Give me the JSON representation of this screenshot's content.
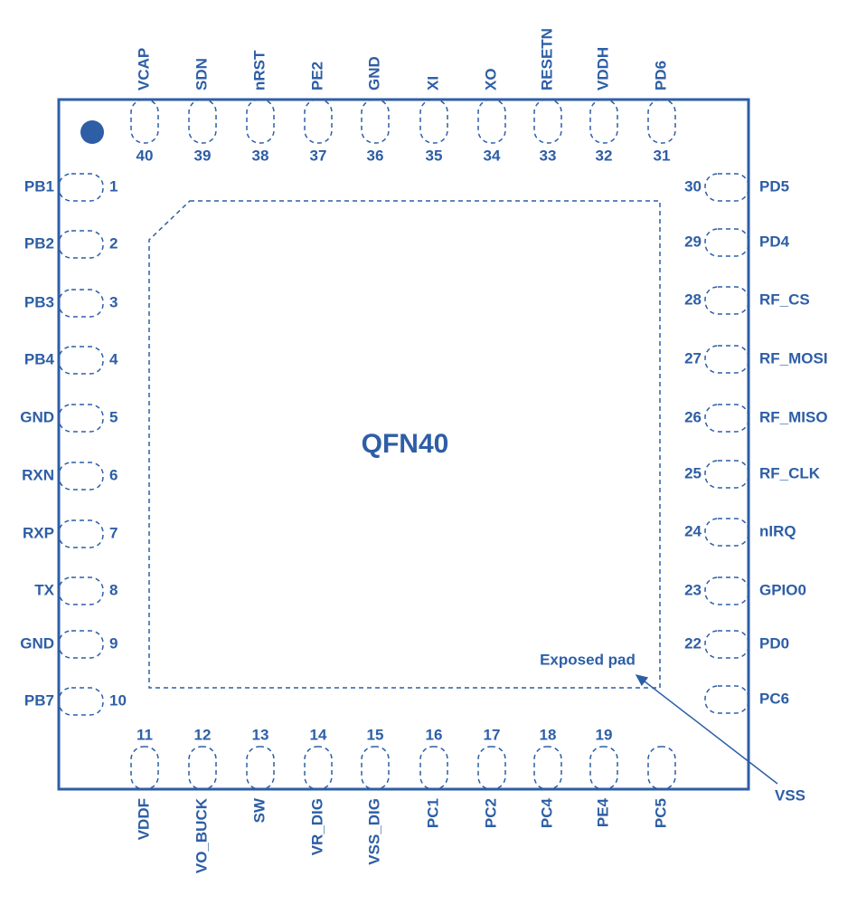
{
  "title": "QFN40",
  "exposed_pad": "Exposed pad",
  "vss": "VSS",
  "pins": {
    "top": [
      {
        "number": 40,
        "name": "VCAP"
      },
      {
        "number": 39,
        "name": "SDN"
      },
      {
        "number": 38,
        "name": "nRST"
      },
      {
        "number": 37,
        "name": "PE2"
      },
      {
        "number": 36,
        "name": "GND"
      },
      {
        "number": 35,
        "name": "XI"
      },
      {
        "number": 34,
        "name": "XO"
      },
      {
        "number": 33,
        "name": "RESETN"
      },
      {
        "number": 32,
        "name": "VDDH"
      },
      {
        "number": 31,
        "name": "PD6"
      }
    ],
    "left": [
      {
        "number": 1,
        "name": "PB1"
      },
      {
        "number": 2,
        "name": "PB2"
      },
      {
        "number": 3,
        "name": "PB3"
      },
      {
        "number": 4,
        "name": "PB4"
      },
      {
        "number": 5,
        "name": "GND"
      },
      {
        "number": 6,
        "name": "RXN"
      },
      {
        "number": 7,
        "name": "RXP"
      },
      {
        "number": 8,
        "name": "TX"
      },
      {
        "number": 9,
        "name": "GND"
      },
      {
        "number": 10,
        "name": "PB7"
      }
    ],
    "right": [
      {
        "number": 30,
        "name": "PD5"
      },
      {
        "number": 29,
        "name": "PD4"
      },
      {
        "number": 28,
        "name": "RF_CS"
      },
      {
        "number": 27,
        "name": "RF_MOSI"
      },
      {
        "number": 26,
        "name": "RF_MISO"
      },
      {
        "number": 25,
        "name": "RF_CLK"
      },
      {
        "number": 24,
        "name": "nIRQ"
      },
      {
        "number": 23,
        "name": "GPIO0"
      },
      {
        "number": 22,
        "name": "PD0"
      },
      {
        "name": "PC6"
      }
    ],
    "bottom": [
      {
        "number": 11,
        "name": "VDDF"
      },
      {
        "number": 12,
        "name": "VO_BUCK"
      },
      {
        "number": 13,
        "name": "SW"
      },
      {
        "number": 14,
        "name": "VR_DIG"
      },
      {
        "number": 15,
        "name": "VSS_DIG"
      },
      {
        "number": 16,
        "name": "PC1"
      },
      {
        "number": 17,
        "name": "PC2"
      },
      {
        "number": 18,
        "name": "PC4"
      },
      {
        "number": 19,
        "name": "PE4"
      },
      {
        "name": "PC5"
      }
    ]
  }
}
